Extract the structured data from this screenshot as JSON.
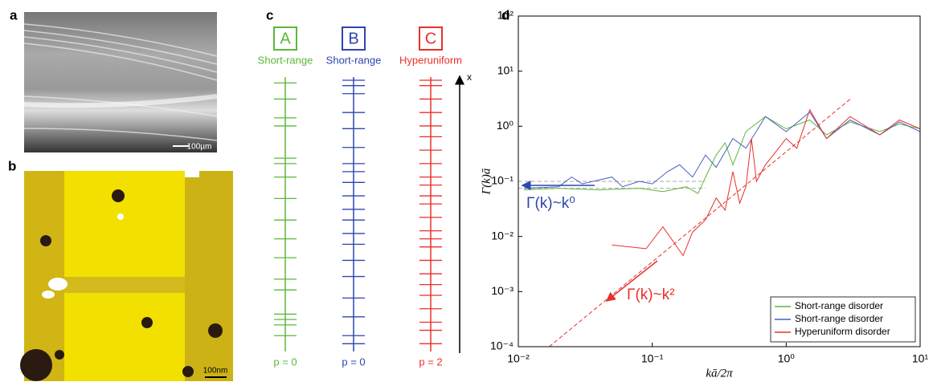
{
  "panels": {
    "a": {
      "label": "a",
      "scale_bar": "100µm"
    },
    "b": {
      "label": "b",
      "scale_bar": "100nm"
    },
    "c": {
      "label": "c",
      "axis_label": "x",
      "columns": [
        {
          "letter": "A",
          "name": "Short-range",
          "color": "#5cb83a",
          "p_label": "p = 0",
          "positions": [
            0.99,
            0.93,
            0.86,
            0.83,
            0.71,
            0.69,
            0.64,
            0.56,
            0.48,
            0.41,
            0.34,
            0.26,
            0.22,
            0.13,
            0.11,
            0.09,
            0.05
          ]
        },
        {
          "letter": "B",
          "name": "Short-range",
          "color": "#2f45b0",
          "p_label": "p = 0",
          "positions": [
            1.0,
            0.98,
            0.95,
            0.88,
            0.82,
            0.75,
            0.69,
            0.66,
            0.62,
            0.57,
            0.52,
            0.48,
            0.43,
            0.39,
            0.33,
            0.27,
            0.19,
            0.12,
            0.05,
            0.02
          ]
        },
        {
          "letter": "C",
          "name": "Hyperuniform",
          "color": "#e8302a",
          "p_label": "p = 2",
          "positions": [
            1.0,
            0.98,
            0.93,
            0.88,
            0.83,
            0.79,
            0.74,
            0.69,
            0.64,
            0.61,
            0.57,
            0.54,
            0.49,
            0.44,
            0.41,
            0.38,
            0.33,
            0.28,
            0.24,
            0.2,
            0.15,
            0.1,
            0.07,
            0.02
          ]
        }
      ]
    }
  },
  "chart_data": {
    "type": "line",
    "panel_label": "d",
    "xlabel": "kā/2π",
    "ylabel": "Γ(k)ā",
    "xscale": "log",
    "yscale": "log",
    "xlim": [
      0.01,
      10
    ],
    "ylim": [
      0.0001,
      100
    ],
    "xticks": [
      {
        "value": 0.01,
        "label": "10⁻²"
      },
      {
        "value": 0.1,
        "label": "10⁻¹"
      },
      {
        "value": 1,
        "label": "10⁰"
      },
      {
        "value": 10,
        "label": "10¹"
      }
    ],
    "yticks": [
      {
        "value": 0.0001,
        "label": "10⁻⁴"
      },
      {
        "value": 0.001,
        "label": "10⁻³"
      },
      {
        "value": 0.01,
        "label": "10⁻²"
      },
      {
        "value": 0.1,
        "label": "10⁻¹"
      },
      {
        "value": 1,
        "label": "10⁰"
      },
      {
        "value": 10,
        "label": "10¹"
      },
      {
        "value": 100,
        "label": "10²"
      }
    ],
    "legend": "lower right",
    "series": [
      {
        "name": "Short-range disorder",
        "color": "#5cb83a",
        "x": [
          0.011,
          0.02,
          0.04,
          0.08,
          0.12,
          0.18,
          0.22,
          0.25,
          0.3,
          0.35,
          0.4,
          0.5,
          0.7,
          1,
          1.5,
          2,
          3,
          5,
          7,
          10
        ],
        "values": [
          0.07,
          0.075,
          0.07,
          0.075,
          0.065,
          0.08,
          0.06,
          0.12,
          0.3,
          0.5,
          0.2,
          0.8,
          1.5,
          0.9,
          1.3,
          0.7,
          1.2,
          0.8,
          1.1,
          0.9
        ]
      },
      {
        "name": "Short-range disorder",
        "color": "#4a5fc4",
        "x": [
          0.011,
          0.02,
          0.025,
          0.03,
          0.05,
          0.06,
          0.08,
          0.1,
          0.13,
          0.16,
          0.2,
          0.25,
          0.3,
          0.4,
          0.5,
          0.7,
          1,
          1.5,
          2,
          3,
          5,
          7,
          10
        ],
        "values": [
          0.075,
          0.08,
          0.12,
          0.09,
          0.12,
          0.08,
          0.1,
          0.09,
          0.15,
          0.2,
          0.12,
          0.3,
          0.18,
          0.6,
          0.4,
          1.5,
          0.8,
          1.8,
          0.6,
          1.3,
          0.7,
          1.2,
          0.8
        ]
      },
      {
        "name": "Hyperuniform disorder",
        "color": "#e8302a",
        "x": [
          0.05,
          0.09,
          0.12,
          0.17,
          0.2,
          0.25,
          0.3,
          0.35,
          0.4,
          0.45,
          0.5,
          0.55,
          0.6,
          0.7,
          0.8,
          1,
          1.2,
          1.5,
          2,
          3,
          5,
          7,
          10
        ],
        "values": [
          0.007,
          0.006,
          0.015,
          0.0045,
          0.012,
          0.02,
          0.05,
          0.03,
          0.15,
          0.04,
          0.08,
          0.6,
          0.1,
          0.2,
          0.3,
          0.6,
          0.4,
          2,
          0.6,
          1.5,
          0.7,
          1.3,
          0.9
        ]
      }
    ],
    "guides": [
      {
        "color": "#e8302a",
        "x": [
          0.017,
          3
        ],
        "values": [
          0.0001,
          3.1
        ]
      },
      {
        "color": "#aaaaaa",
        "x": [
          0.01,
          0.25
        ],
        "values": [
          0.1,
          0.1
        ]
      },
      {
        "color": "#aaaaaa",
        "x": [
          0.01,
          0.25
        ],
        "values": [
          0.075,
          0.075
        ]
      }
    ],
    "annotations": [
      {
        "text": "Γ(k)~k⁰",
        "color": "#2f45b0"
      },
      {
        "text": "Γ(k)~k²",
        "color": "#e8302a"
      }
    ]
  }
}
